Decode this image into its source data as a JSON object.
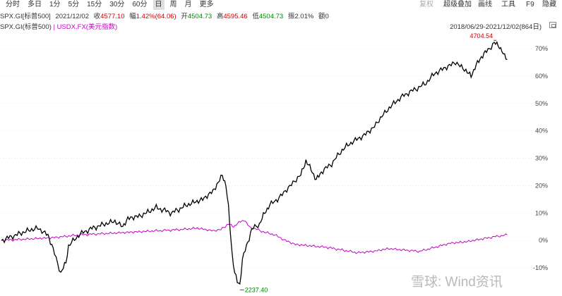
{
  "toolbar": {
    "tabs": [
      "分时",
      "多日",
      "1分",
      "5分",
      "15分",
      "30分",
      "60分",
      "日",
      "周",
      "月",
      "更多"
    ],
    "active_tab": "日",
    "right": {
      "fuquan": "复权",
      "overlay": "超级叠加",
      "draw": "画线",
      "tools": "工具",
      "f9": "F9",
      "hide": "隐藏"
    }
  },
  "info": {
    "symbol": "SPX.GI[标普500]",
    "date": "2021/12/02",
    "close_label": "收",
    "close": "4577.10",
    "change_label": "幅",
    "change": "1.42%(64.06)",
    "open_label": "开",
    "open": "4504.73",
    "high_label": "高",
    "high": "4595.46",
    "low_label": "低",
    "low": "4504.73",
    "amp_label": "振",
    "amp": "2.01%",
    "vol_label": "额",
    "vol": "0"
  },
  "legend": {
    "spx": "SPX.GI(标普500)",
    "sep": "|",
    "usdx": "USDX.FX(美元指数)"
  },
  "range": {
    "text": "2018/06/29-2021/12/02(864日)"
  },
  "colors": {
    "spx": "#000000",
    "usdx": "#c800c8",
    "up": "#d00000",
    "down": "#008800"
  },
  "watermark": {
    "text": "雪球: Wind资讯"
  },
  "chart_data": {
    "type": "line",
    "x_range": [
      "2018/06/29",
      "2021/12/02"
    ],
    "y_axis": {
      "ticks": [
        "70%",
        "60%",
        "50%",
        "40%",
        "30%",
        "20%",
        "10%",
        "0%",
        "-10%"
      ],
      "ylim": [
        -17,
        78
      ]
    },
    "annotations": {
      "high": "4704.54",
      "low": "2237.40"
    },
    "series": [
      {
        "name": "SPX.GI(标普500)",
        "points": [
          [
            0,
            0
          ],
          [
            0.05,
            3.5
          ],
          [
            0.07,
            4.5
          ],
          [
            0.09,
            2
          ],
          [
            0.1,
            -3
          ],
          [
            0.115,
            -12
          ],
          [
            0.125,
            -8
          ],
          [
            0.13,
            -2
          ],
          [
            0.15,
            2
          ],
          [
            0.17,
            4
          ],
          [
            0.2,
            6
          ],
          [
            0.22,
            7
          ],
          [
            0.235,
            5
          ],
          [
            0.245,
            8
          ],
          [
            0.27,
            9
          ],
          [
            0.3,
            12
          ],
          [
            0.33,
            10
          ],
          [
            0.36,
            13
          ],
          [
            0.39,
            15
          ],
          [
            0.41,
            18
          ],
          [
            0.42,
            21
          ],
          [
            0.428,
            24
          ],
          [
            0.435,
            20
          ],
          [
            0.44,
            12
          ],
          [
            0.447,
            -5
          ],
          [
            0.452,
            -12
          ],
          [
            0.457,
            -15
          ],
          [
            0.462,
            -16
          ],
          [
            0.467,
            -7
          ],
          [
            0.475,
            -2
          ],
          [
            0.485,
            4
          ],
          [
            0.5,
            6
          ],
          [
            0.51,
            10
          ],
          [
            0.52,
            13
          ],
          [
            0.535,
            15
          ],
          [
            0.55,
            18
          ],
          [
            0.565,
            21
          ],
          [
            0.58,
            24
          ],
          [
            0.59,
            29
          ],
          [
            0.6,
            26
          ],
          [
            0.61,
            22
          ],
          [
            0.62,
            25
          ],
          [
            0.64,
            28
          ],
          [
            0.66,
            33
          ],
          [
            0.68,
            36
          ],
          [
            0.7,
            38
          ],
          [
            0.72,
            41
          ],
          [
            0.74,
            46
          ],
          [
            0.76,
            50
          ],
          [
            0.78,
            53
          ],
          [
            0.8,
            55
          ],
          [
            0.82,
            57
          ],
          [
            0.84,
            61
          ],
          [
            0.86,
            63
          ],
          [
            0.88,
            65
          ],
          [
            0.9,
            62
          ],
          [
            0.91,
            60
          ],
          [
            0.92,
            64
          ],
          [
            0.93,
            67
          ],
          [
            0.94,
            69
          ],
          [
            0.955,
            72
          ],
          [
            0.965,
            71
          ],
          [
            0.975,
            67
          ],
          [
            0.98,
            66
          ]
        ]
      },
      {
        "name": "USDX.FX(美元指数)",
        "points": [
          [
            0,
            0
          ],
          [
            0.05,
            0.5
          ],
          [
            0.1,
            1
          ],
          [
            0.15,
            2
          ],
          [
            0.2,
            2.5
          ],
          [
            0.25,
            3
          ],
          [
            0.3,
            3.5
          ],
          [
            0.35,
            4
          ],
          [
            0.38,
            4.5
          ],
          [
            0.41,
            3.5
          ],
          [
            0.425,
            4
          ],
          [
            0.44,
            6
          ],
          [
            0.45,
            5
          ],
          [
            0.46,
            6.5
          ],
          [
            0.47,
            7.5
          ],
          [
            0.48,
            5
          ],
          [
            0.495,
            4
          ],
          [
            0.51,
            3
          ],
          [
            0.53,
            2
          ],
          [
            0.55,
            0
          ],
          [
            0.57,
            -1.5
          ],
          [
            0.6,
            -2
          ],
          [
            0.63,
            -2.5
          ],
          [
            0.66,
            -3.5
          ],
          [
            0.69,
            -4.5
          ],
          [
            0.72,
            -4
          ],
          [
            0.75,
            -3
          ],
          [
            0.78,
            -3.5
          ],
          [
            0.81,
            -4
          ],
          [
            0.84,
            -2.5
          ],
          [
            0.87,
            -1
          ],
          [
            0.9,
            -0.5
          ],
          [
            0.93,
            0.5
          ],
          [
            0.96,
            1.5
          ],
          [
            0.98,
            2
          ]
        ]
      }
    ]
  }
}
